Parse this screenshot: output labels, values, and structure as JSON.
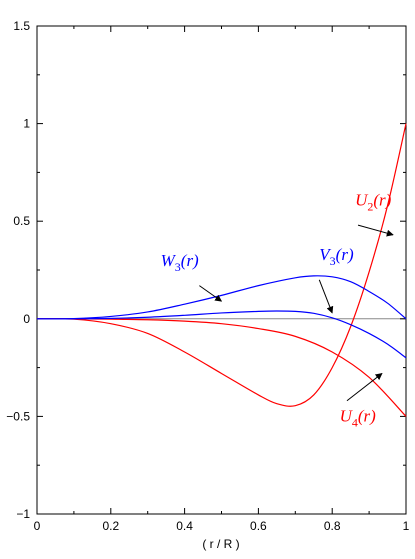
{
  "chart_data": {
    "type": "line",
    "title": "",
    "xlabel": "( r / R )",
    "ylabel": "",
    "xlim": [
      0,
      1
    ],
    "ylim": [
      -1,
      1.5
    ],
    "x_ticks": [
      0,
      0.2,
      0.4,
      0.6,
      0.8,
      1
    ],
    "x_tick_labels": [
      "0",
      "0.2",
      "0.4",
      "0.6",
      "0.8",
      "1"
    ],
    "y_ticks": [
      -1,
      -0.5,
      0,
      0.5,
      1,
      1.5
    ],
    "y_tick_labels": [
      "−1",
      "−0.5",
      "0",
      "0.5",
      "1",
      "1.5"
    ],
    "grid": false,
    "baseline_y": 0,
    "series": [
      {
        "name": "U2(r)",
        "color": "#ff0000",
        "x": [
          0,
          0.1,
          0.2,
          0.3,
          0.4,
          0.5,
          0.6,
          0.65,
          0.7,
          0.75,
          0.8,
          0.85,
          0.9,
          0.95,
          1
        ],
        "y": [
          0,
          -0.002,
          -0.025,
          -0.075,
          -0.17,
          -0.28,
          -0.39,
          -0.435,
          -0.445,
          -0.39,
          -0.25,
          -0.04,
          0.24,
          0.58,
          1.0
        ]
      },
      {
        "name": "U4(r)",
        "color": "#ff0000",
        "x": [
          0,
          0.1,
          0.2,
          0.3,
          0.4,
          0.5,
          0.6,
          0.7,
          0.8,
          0.9,
          1
        ],
        "y": [
          0,
          0,
          -0.002,
          -0.005,
          -0.012,
          -0.025,
          -0.05,
          -0.09,
          -0.17,
          -0.3,
          -0.5
        ]
      },
      {
        "name": "W3(r)",
        "color": "#0000ff",
        "x": [
          0,
          0.1,
          0.2,
          0.3,
          0.4,
          0.5,
          0.6,
          0.7,
          0.75,
          0.8,
          0.85,
          0.9,
          0.95,
          1
        ],
        "y": [
          0,
          0.001,
          0.012,
          0.035,
          0.075,
          0.12,
          0.17,
          0.21,
          0.22,
          0.215,
          0.19,
          0.14,
          0.08,
          0.0
        ]
      },
      {
        "name": "V3(r)",
        "color": "#0000ff",
        "x": [
          0,
          0.1,
          0.2,
          0.3,
          0.4,
          0.5,
          0.6,
          0.65,
          0.7,
          0.75,
          0.8,
          0.85,
          0.9,
          0.95,
          1
        ],
        "y": [
          0,
          0,
          0.002,
          0.008,
          0.018,
          0.03,
          0.038,
          0.04,
          0.038,
          0.028,
          0.005,
          -0.03,
          -0.075,
          -0.13,
          -0.2
        ]
      }
    ],
    "annotations": [
      {
        "base": "U",
        "sub": "2",
        "tail": "(r)",
        "color": "#ff0000",
        "text_at": [
          0.862,
          0.58
        ],
        "arrow_from": [
          0.87,
          0.48
        ],
        "arrow_to": [
          0.965,
          0.43
        ]
      },
      {
        "base": "V",
        "sub": "3",
        "tail": "(r)",
        "color": "#0000ff",
        "text_at": [
          0.765,
          0.3
        ],
        "arrow_from": [
          0.765,
          0.2
        ],
        "arrow_to": [
          0.8,
          0.03
        ]
      },
      {
        "base": "W",
        "sub": "3",
        "tail": "(r)",
        "color": "#0000ff",
        "text_at": [
          0.335,
          0.27
        ],
        "arrow_from": [
          0.44,
          0.17
        ],
        "arrow_to": [
          0.5,
          0.09
        ]
      },
      {
        "base": "U",
        "sub": "4",
        "tail": "(r)",
        "color": "#ff0000",
        "text_at": [
          0.82,
          -0.525
        ],
        "arrow_from": [
          0.84,
          -0.42
        ],
        "arrow_to": [
          0.935,
          -0.28
        ]
      }
    ]
  }
}
